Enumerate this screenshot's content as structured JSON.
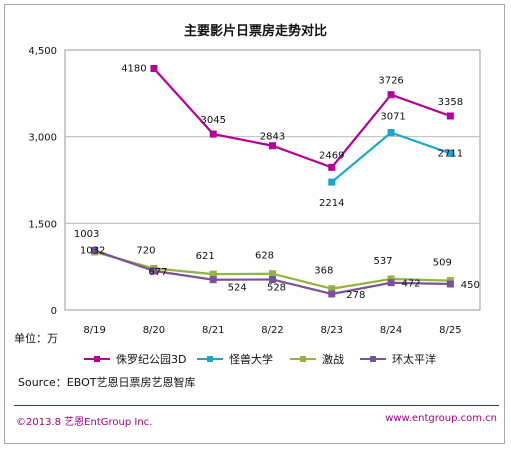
{
  "chart_data": {
    "type": "line",
    "title": "主要影片日票房走势对比",
    "unit_label": "单位：万",
    "categories": [
      "8/19",
      "8/20",
      "8/21",
      "8/22",
      "8/23",
      "8/24",
      "8/25"
    ],
    "ylim": [
      0,
      4500
    ],
    "yticks": [
      "0",
      "1,500",
      "3,000",
      "4,500"
    ],
    "ytick_values": [
      0,
      1500,
      3000,
      4500
    ],
    "grid": "horizontal",
    "series": [
      {
        "name": "侏罗纪公园3D",
        "color": "#b4009b",
        "values": [
          null,
          4180,
          3045,
          2843,
          2469,
          3726,
          3358
        ],
        "labels": [
          "",
          "4180",
          "3045",
          "2843",
          "2469",
          "3726",
          "3358"
        ]
      },
      {
        "name": "怪兽大学",
        "color": "#1aa7c9",
        "values": [
          null,
          null,
          null,
          null,
          2214,
          3071,
          2711
        ],
        "labels": [
          "",
          "",
          "",
          "",
          "2214",
          "3071",
          "2711"
        ]
      },
      {
        "name": "激战",
        "color": "#92b540",
        "values": [
          1003,
          720,
          621,
          628,
          368,
          537,
          509
        ],
        "labels": [
          "1003",
          "720",
          "621",
          "628",
          "368",
          "537",
          "509"
        ]
      },
      {
        "name": "环太平洋",
        "color": "#7a5299",
        "values": [
          1032,
          677,
          524,
          528,
          278,
          472,
          450
        ],
        "labels": [
          "1032",
          "677",
          "524",
          "528",
          "278",
          "472",
          "450"
        ]
      }
    ]
  },
  "source_text": "Source：EBOT艺恩日票房艺恩智库",
  "footer": {
    "left": "©2013.8  艺恩EntGroup Inc.",
    "right": "www.entgroup.com.cn"
  }
}
